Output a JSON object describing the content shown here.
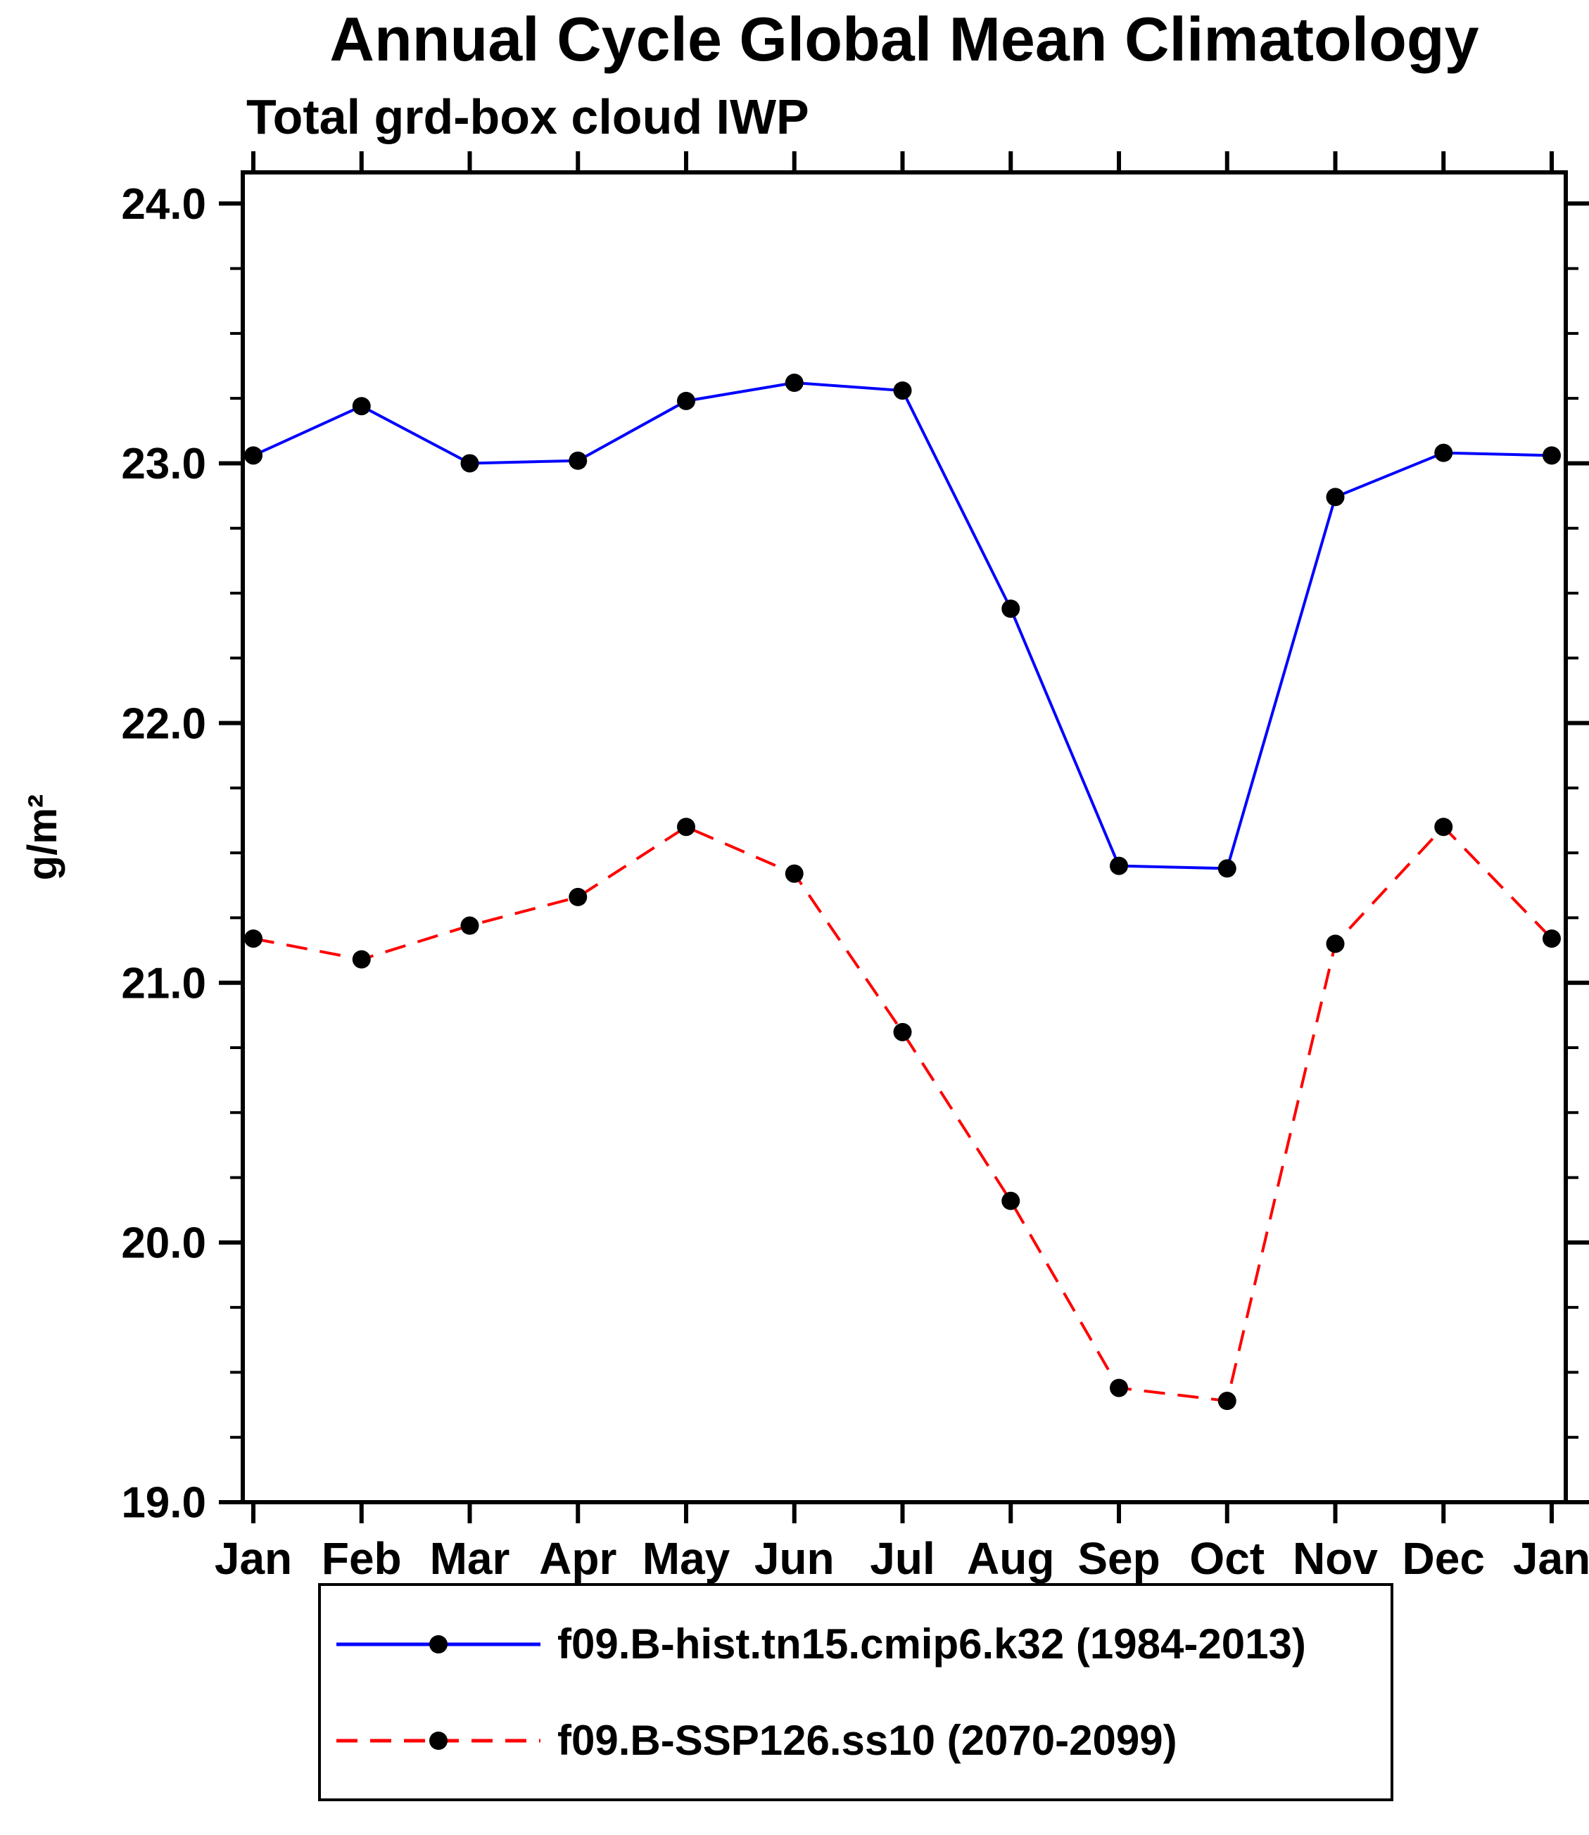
{
  "chart_data": {
    "type": "line",
    "title": "Annual Cycle Global Mean Climatology",
    "subtitle": "Total grd-box cloud IWP",
    "ylabel": "g/m²",
    "xlabel": "",
    "categories": [
      "Jan",
      "Feb",
      "Mar",
      "Apr",
      "May",
      "Jun",
      "Jul",
      "Aug",
      "Sep",
      "Oct",
      "Nov",
      "Dec",
      "Jan"
    ],
    "ylim": [
      19.0,
      24.12
    ],
    "yticks_major": [
      19.0,
      20.0,
      21.0,
      22.0,
      23.0,
      24.0
    ],
    "ytick_minor_step": 0.25,
    "grid": false,
    "legend_position": "bottom",
    "marker_color": "#000000",
    "axis_color": "#000000",
    "series": [
      {
        "name": "f09.B-hist.tn15.cmip6.k32 (1984-2013)",
        "color": "#0000ff",
        "line_style": "solid",
        "values": [
          23.03,
          23.22,
          23.0,
          23.01,
          23.24,
          23.31,
          23.28,
          22.44,
          21.45,
          21.44,
          22.87,
          23.04,
          23.03
        ]
      },
      {
        "name": "f09.B-SSP126.ss10 (2070-2099)",
        "color": "#ff0000",
        "line_style": "dashed",
        "values": [
          21.17,
          21.09,
          21.22,
          21.33,
          21.6,
          21.42,
          20.81,
          20.16,
          19.44,
          19.39,
          21.15,
          21.6,
          21.17
        ]
      }
    ]
  }
}
